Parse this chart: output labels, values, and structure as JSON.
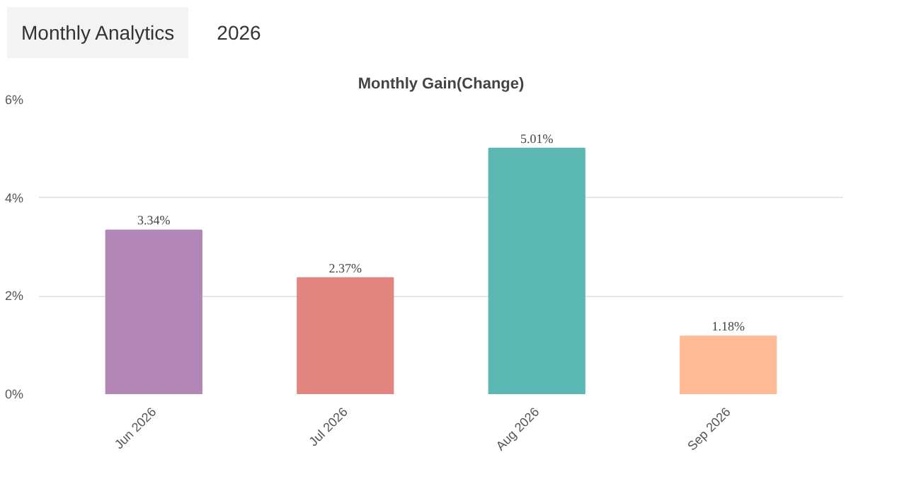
{
  "chart_data": {
    "type": "bar",
    "title": "Monthly Gain(Change)",
    "annotations": [
      "Monthly Analytics",
      "2026"
    ],
    "categories": [
      "Jun 2026",
      "Jul 2026",
      "Aug 2026",
      "Sep 2026"
    ],
    "values": [
      3.34,
      2.37,
      5.01,
      1.18
    ],
    "value_labels": [
      "3.34%",
      "2.37%",
      "5.01%",
      "1.18%"
    ],
    "colors": [
      "#b286b6",
      "#e3857f",
      "#5bb8b3",
      "#ffbb95"
    ],
    "ylim": [
      0,
      6
    ],
    "yticks": [
      {
        "value": 0,
        "label": "0%"
      },
      {
        "value": 2,
        "label": "2%"
      },
      {
        "value": 4,
        "label": "4%"
      },
      {
        "value": 6,
        "label": "6%"
      }
    ],
    "grid": "y"
  }
}
